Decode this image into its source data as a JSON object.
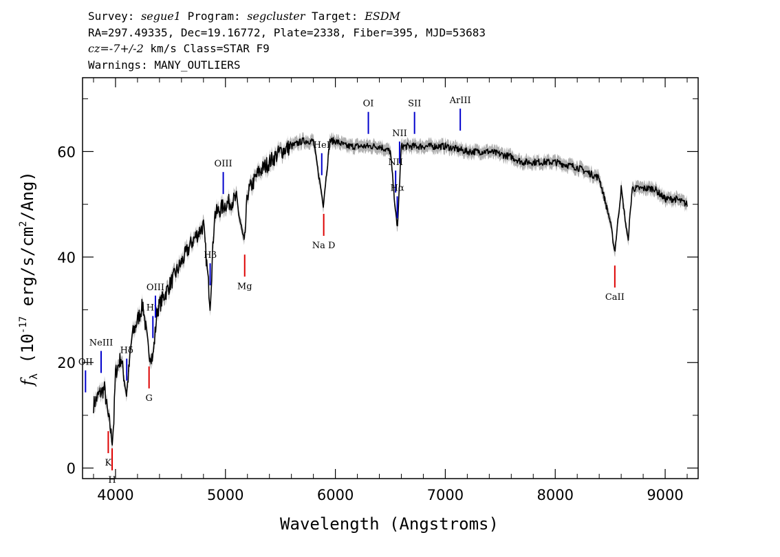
{
  "header": {
    "survey_label": "Survey:",
    "survey": "segue1",
    "program_label": "Program:",
    "program": "segcluster",
    "target_label": "Target:",
    "target": "ESDM",
    "line2": "RA=297.49335, Dec=19.16772, Plate=2338, Fiber=395, MJD=53683",
    "cz": "cz=-7+/-2",
    "cz_rest": " km/s Class=STAR F9",
    "warnings": "Warnings: MANY_OUTLIERS"
  },
  "chart_data": {
    "type": "line",
    "xlabel": "Wavelength (Angstroms)",
    "ylabel": "f_λ (10^-17 erg/s/cm^2/Ang)",
    "xlim": [
      3700,
      9300
    ],
    "ylim": [
      -2,
      74
    ],
    "x_ticks": [
      4000,
      5000,
      6000,
      7000,
      8000,
      9000
    ],
    "y_ticks": [
      0,
      20,
      40,
      60
    ],
    "colors": {
      "spectrum": "#000000",
      "error": "#b0b0b0",
      "emission": "#0000cc",
      "absorption": "#dd0000"
    },
    "series": [
      {
        "x": [
          3800,
          3850,
          3900,
          3930,
          3950,
          3968,
          3985,
          4000,
          4050,
          4101,
          4150,
          4200,
          4250,
          4300,
          4340,
          4380,
          4450,
          4500,
          4600,
          4700,
          4800,
          4861,
          4900,
          4950,
          5000,
          5100,
          5172,
          5200,
          5300,
          5400,
          5500,
          5600,
          5700,
          5800,
          5890,
          5950,
          6000,
          6100,
          6200,
          6300,
          6400,
          6500,
          6563,
          6600,
          6700,
          6800,
          7000,
          7200,
          7400,
          7600,
          7700,
          7800,
          8000,
          8200,
          8400,
          8498,
          8542,
          8600,
          8662,
          8700,
          8800,
          8900,
          9000,
          9100,
          9200
        ],
        "y": [
          12,
          14,
          15,
          10,
          8,
          5,
          9,
          18,
          21,
          14,
          25,
          28,
          31,
          22,
          21,
          30,
          33,
          35,
          39,
          43,
          46,
          31,
          48,
          49,
          50,
          51,
          42,
          52,
          56,
          58,
          60,
          61,
          62,
          62,
          50,
          62,
          62,
          61,
          61,
          61,
          61,
          60,
          45,
          61,
          61,
          61,
          61,
          60,
          60,
          59,
          58,
          58,
          58,
          57,
          55,
          47,
          41,
          53,
          43,
          53,
          53,
          53,
          51,
          51,
          50
        ]
      }
    ],
    "emission_lines": [
      {
        "label": "OII",
        "wavelength": 3727
      },
      {
        "label": "NeIII",
        "wavelength": 3869
      },
      {
        "label": "Hδ",
        "wavelength": 4102
      },
      {
        "label": "Hγ",
        "wavelength": 4340
      },
      {
        "label": "OIII",
        "wavelength": 4363
      },
      {
        "label": "Hβ",
        "wavelength": 4861
      },
      {
        "label": "OIII",
        "wavelength": 4980
      },
      {
        "label": "HeI",
        "wavelength": 5876
      },
      {
        "label": "OI",
        "wavelength": 6300
      },
      {
        "label": "NII",
        "wavelength": 6548
      },
      {
        "label": "Hα",
        "wavelength": 6563
      },
      {
        "label": "NII",
        "wavelength": 6584
      },
      {
        "label": "SII",
        "wavelength": 6720
      },
      {
        "label": "ArIII",
        "wavelength": 7136
      }
    ],
    "absorption_lines": [
      {
        "label": "K",
        "wavelength": 3934
      },
      {
        "label": "H",
        "wavelength": 3969
      },
      {
        "label": "G",
        "wavelength": 4305
      },
      {
        "label": "Mg",
        "wavelength": 5175
      },
      {
        "label": "Na D",
        "wavelength": 5894
      },
      {
        "label": "CaII",
        "wavelength": 8542
      }
    ]
  }
}
